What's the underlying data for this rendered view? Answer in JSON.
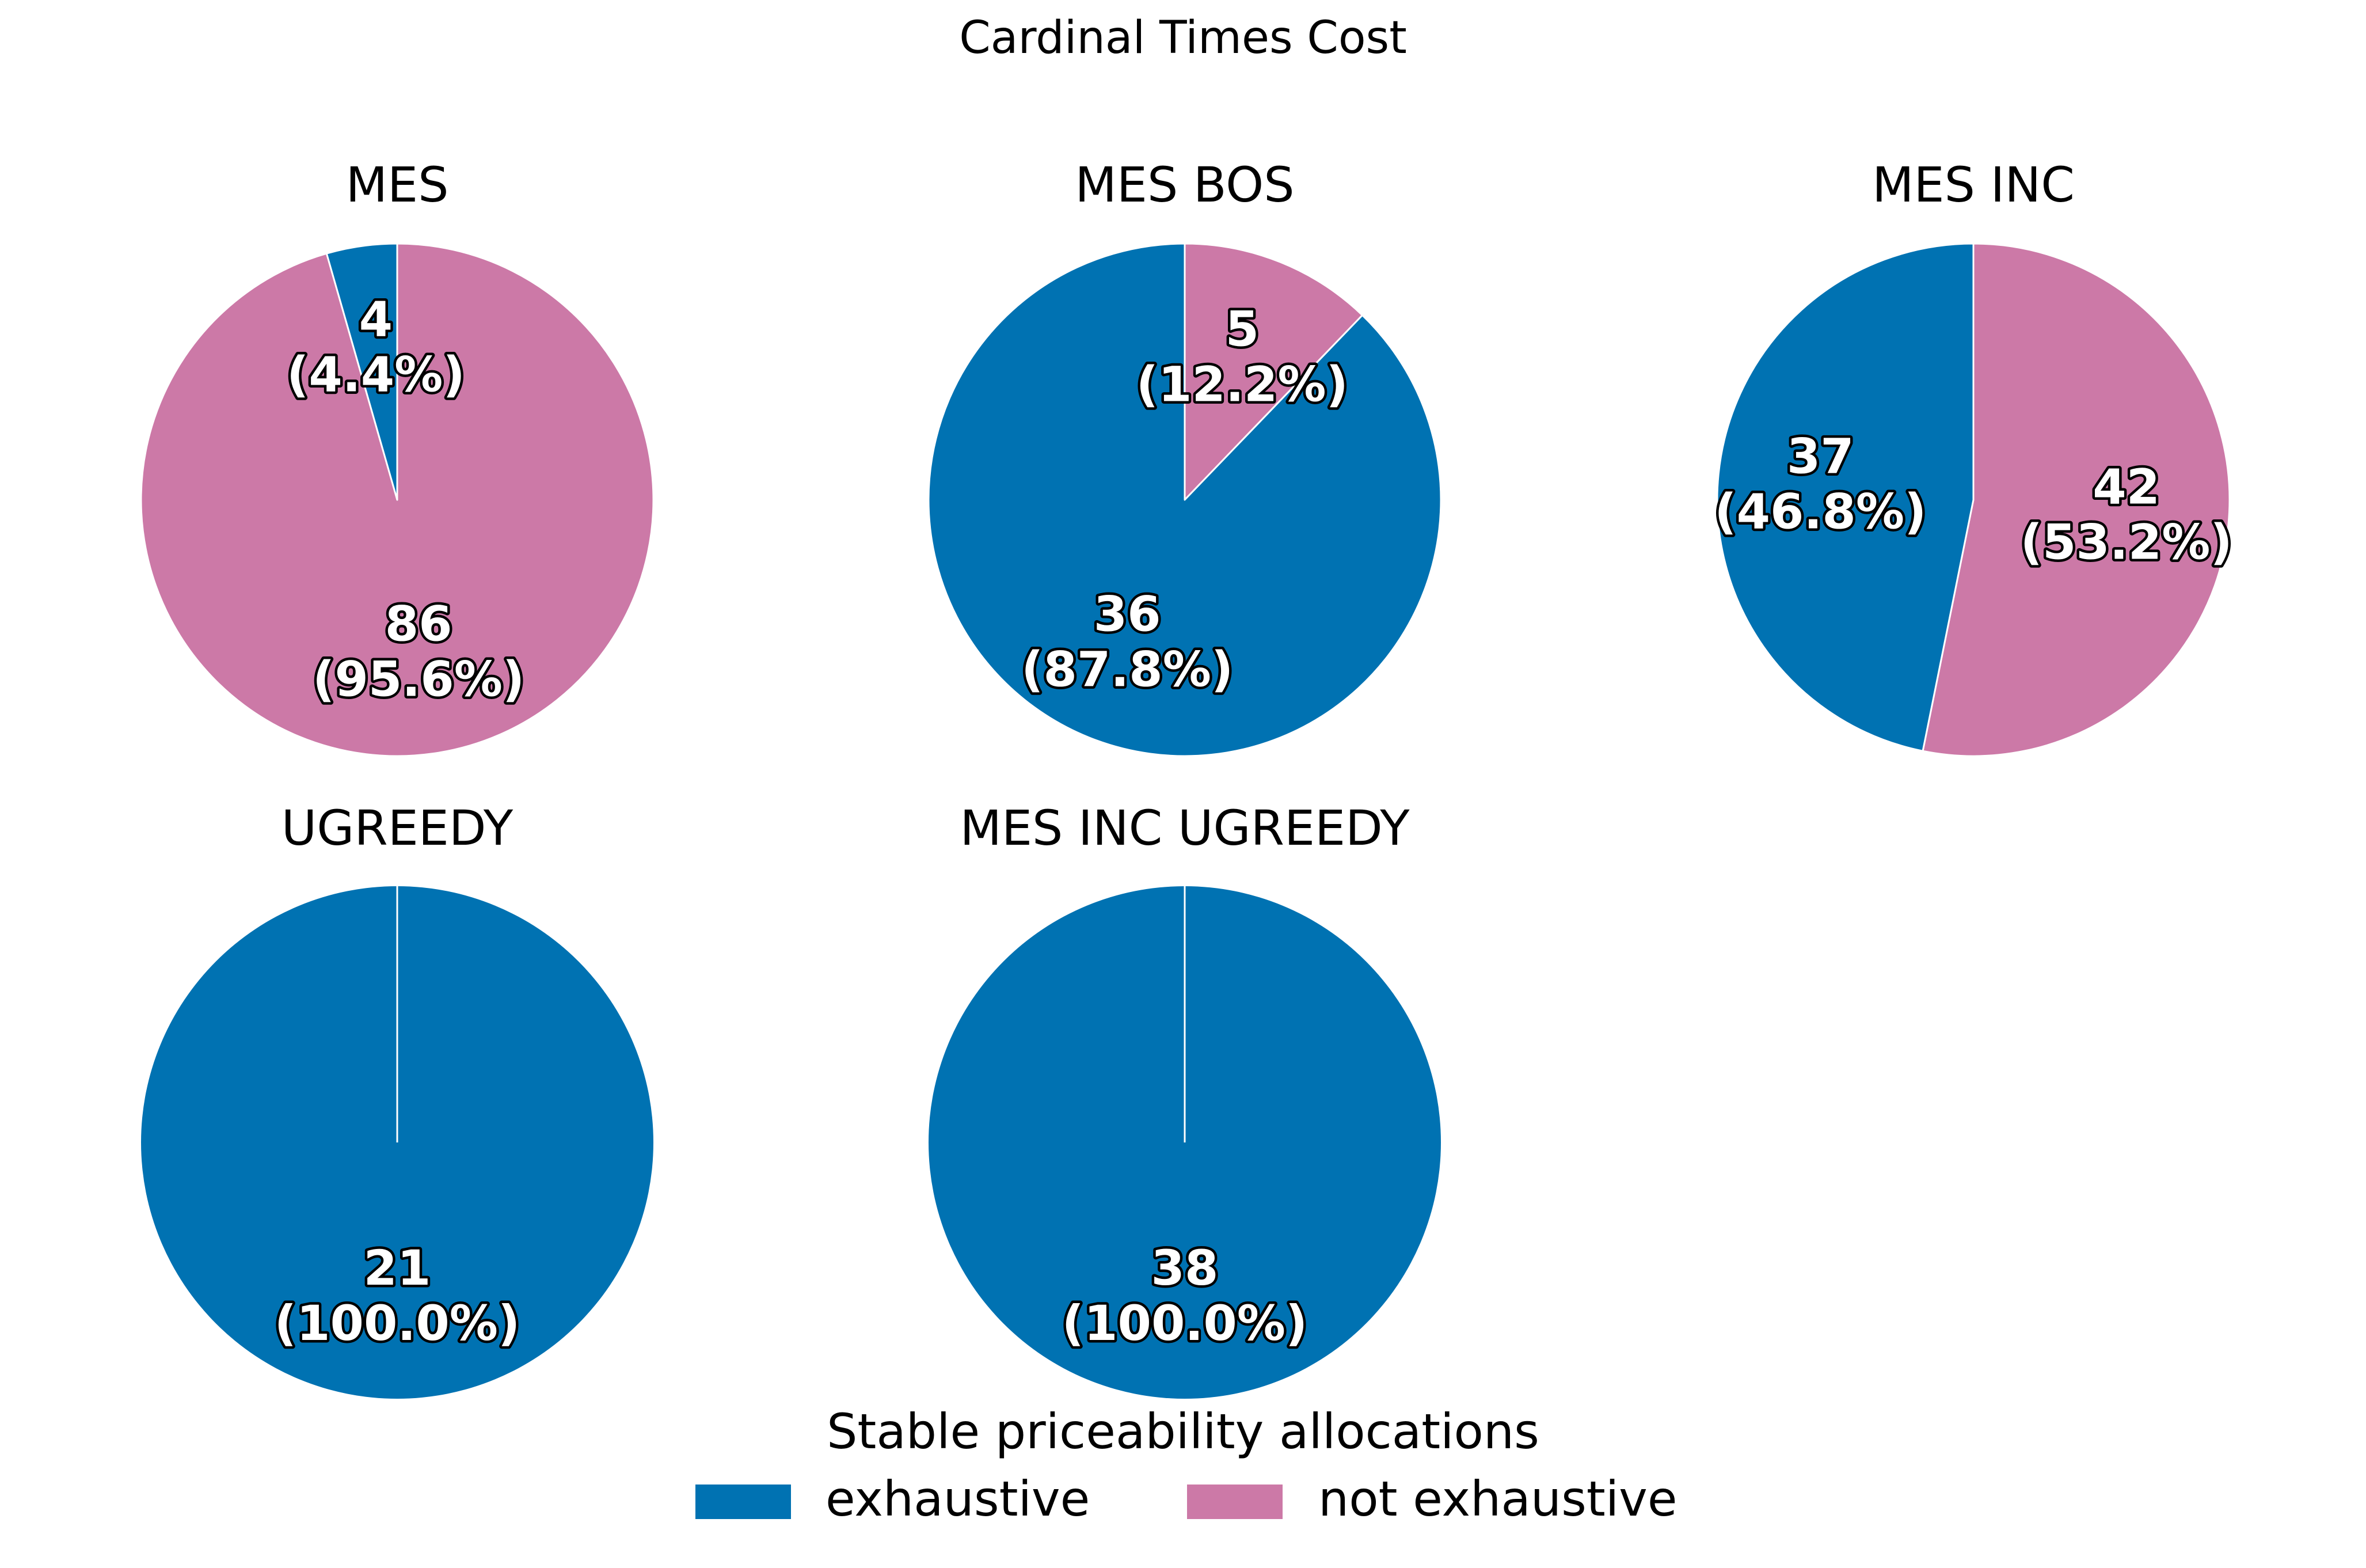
{
  "chart_data": {
    "type": "pie",
    "title": "Cardinal Times Cost",
    "legend": {
      "title": "Stable priceability allocations",
      "placement": "bottom-center",
      "entries": [
        {
          "label": "exhaustive",
          "color": "#0072B2"
        },
        {
          "label": "not exhaustive",
          "color": "#CC79A7"
        }
      ]
    },
    "colors": {
      "exhaustive": "#0072B2",
      "not exhaustive": "#CC79A7",
      "edge": "#ffffff"
    },
    "pies": [
      {
        "title": "MES",
        "slices": [
          {
            "category": "exhaustive",
            "value": 4,
            "label_count": "4",
            "label_pct": "(4.4%)"
          },
          {
            "category": "not exhaustive",
            "value": 86,
            "label_count": "86",
            "label_pct": "(95.6%)"
          }
        ]
      },
      {
        "title": "MES BOS",
        "slices": [
          {
            "category": "exhaustive",
            "value": 36,
            "label_count": "36",
            "label_pct": "(87.8%)"
          },
          {
            "category": "not exhaustive",
            "value": 5,
            "label_count": "5",
            "label_pct": "(12.2%)"
          }
        ]
      },
      {
        "title": "MES INC",
        "slices": [
          {
            "category": "exhaustive",
            "value": 37,
            "label_count": "37",
            "label_pct": "(46.8%)"
          },
          {
            "category": "not exhaustive",
            "value": 42,
            "label_count": "42",
            "label_pct": "(53.2%)"
          }
        ]
      },
      {
        "title": "UGREEDY",
        "slices": [
          {
            "category": "exhaustive",
            "value": 21,
            "label_count": "21",
            "label_pct": "(100.0%)"
          }
        ]
      },
      {
        "title": "MES INC UGREEDY",
        "slices": [
          {
            "category": "exhaustive",
            "value": 38,
            "label_count": "38",
            "label_pct": "(100.0%)"
          }
        ]
      }
    ]
  }
}
